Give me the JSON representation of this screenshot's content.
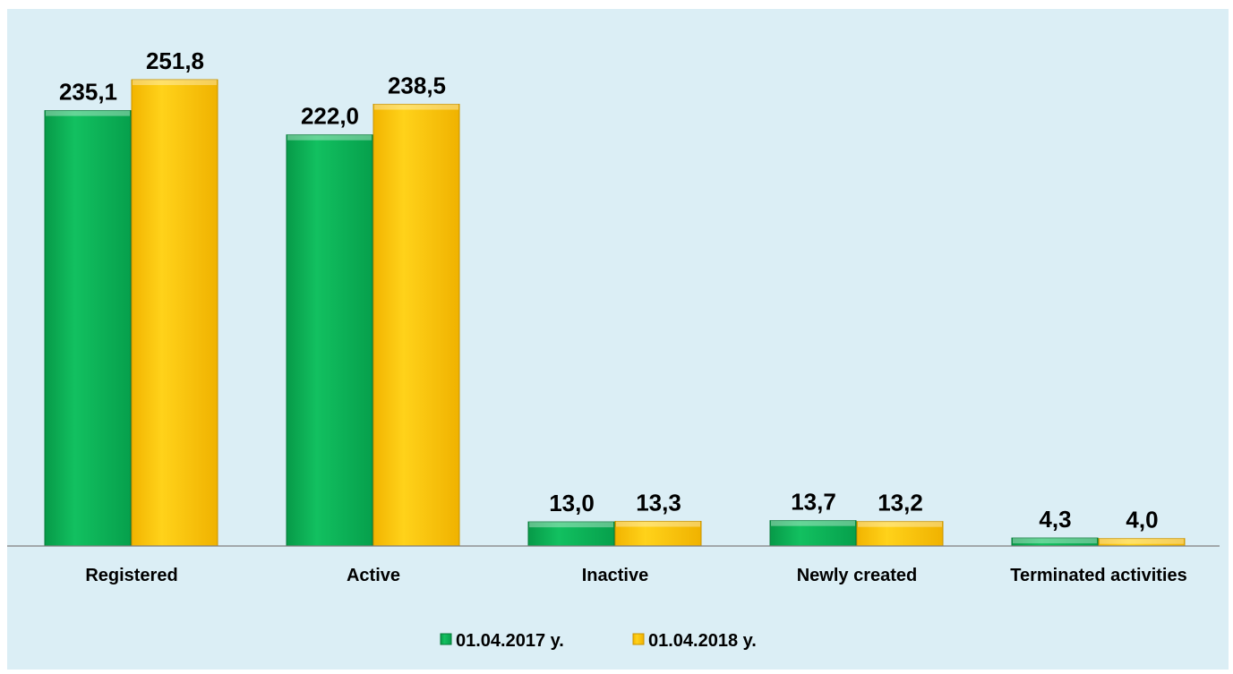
{
  "chart_data": {
    "type": "bar",
    "categories": [
      "Registered",
      "Active",
      "Inactive",
      "Newly created",
      "Terminated activities"
    ],
    "series": [
      {
        "name": "01.04.2017 y.",
        "values": [
          235.1,
          222.0,
          13.0,
          13.7,
          4.3
        ],
        "labels": [
          "235,1",
          "222,0",
          "13,0",
          "13,7",
          "4,3"
        ],
        "color": "#0ab455"
      },
      {
        "name": "01.04.2018 y.",
        "values": [
          251.8,
          238.5,
          13.3,
          13.2,
          4.0
        ],
        "labels": [
          "251,8",
          "238,5",
          "13,3",
          "13,2",
          "4,0"
        ],
        "color": "#ffc800"
      }
    ],
    "ylim": [
      0,
      290
    ],
    "grid": false,
    "legend": "bottom-center",
    "background": "#dbeef5"
  }
}
